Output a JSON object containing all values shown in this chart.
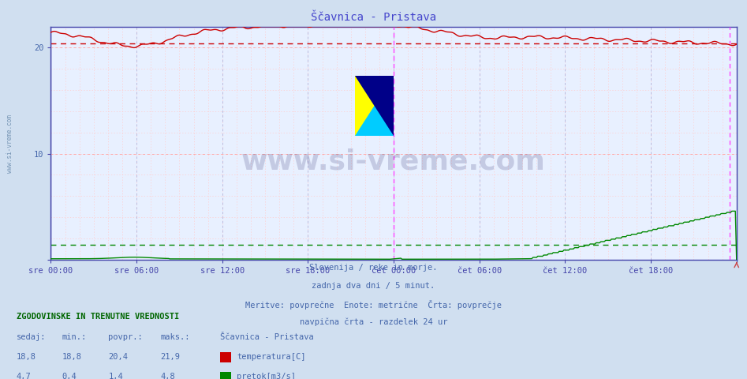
{
  "title": "Ščavnica - Pristava",
  "title_color": "#4444aa",
  "bg_color": "#d0dff0",
  "plot_bg_color": "#e8f0ff",
  "x_start": 0,
  "x_end": 576,
  "x_ticks": [
    0,
    72,
    144,
    216,
    288,
    360,
    432,
    504,
    576
  ],
  "x_tick_labels": [
    "sre 00:00",
    "sre 06:00",
    "sre 12:00",
    "sre 18:00",
    "čet 00:00",
    "čet 06:00",
    "čet 12:00",
    "čet 18:00",
    ""
  ],
  "y_min": 0,
  "y_max": 22,
  "y_ticks": [
    0,
    10,
    20
  ],
  "temp_color": "#cc0000",
  "flow_color": "#008800",
  "avg_line_temp": 20.4,
  "avg_line_flow": 1.4,
  "vertical_line_x1": 288,
  "vertical_line_x2": 570,
  "subtitle_lines": [
    "Slovenija / reke in morje.",
    "zadnja dva dni / 5 minut.",
    "Meritve: povprečne  Enote: metrične  Črta: povprečje",
    "navpična črta - razdelek 24 ur"
  ],
  "info_header": "ZGODOVINSKE IN TRENUTNE VREDNOSTI",
  "info_cols": [
    "sedaj:",
    "min.:",
    "povpr.:",
    "maks.:"
  ],
  "info_row1": [
    "18,8",
    "18,8",
    "20,4",
    "21,9"
  ],
  "info_row2": [
    "4,7",
    "0,4",
    "1,4",
    "4,8"
  ],
  "legend_label1": "temperatura[C]",
  "legend_label2": "pretok[m3/s]",
  "station_name": "Ščavnica - Pristava",
  "watermark": "www.si-vreme.com",
  "left_label": "www.si-vreme.com"
}
